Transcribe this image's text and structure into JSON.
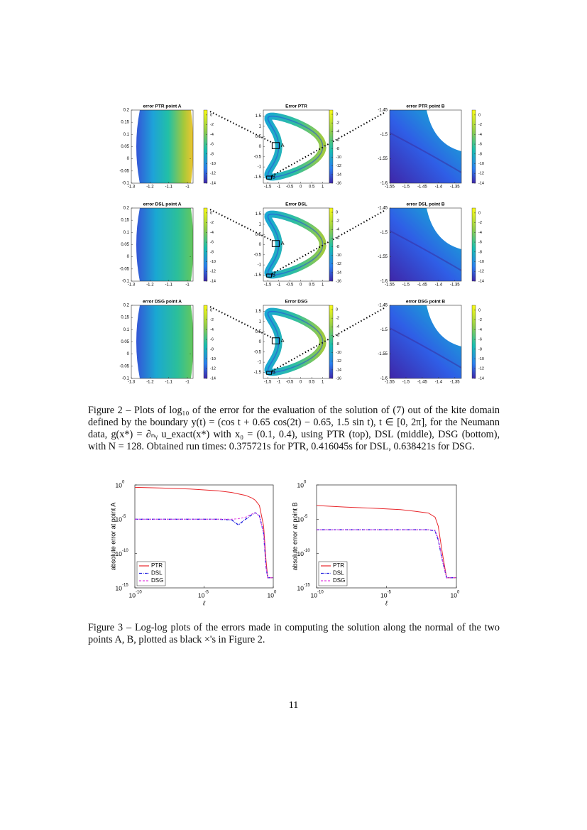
{
  "figure2": {
    "rows": [
      {
        "titles": [
          "error PTR point A",
          "Error PTR",
          "error PTR point B"
        ]
      },
      {
        "titles": [
          "error DSL point A",
          "Error DSL",
          "error DSL point B"
        ]
      },
      {
        "titles": [
          "error DSG point A",
          "Error DSG",
          "error DSG point B"
        ]
      }
    ],
    "columns": [
      {
        "xlim": [
          -1.3,
          -0.97
        ],
        "ylim": [
          -0.1,
          0.2
        ],
        "xticks": [
          -1.3,
          -1.2,
          -1.1,
          -1
        ],
        "yticks": [
          -0.1,
          -0.05,
          0,
          0.05,
          0.1,
          0.15,
          0.2
        ],
        "cblim": [
          -14,
          1
        ],
        "cbticks": [
          0,
          -2,
          -4,
          -6,
          -8,
          -10,
          -12,
          -14
        ]
      },
      {
        "xlim": [
          -1.7,
          1.3
        ],
        "ylim": [
          -1.8,
          1.8
        ],
        "xticks": [
          -1.5,
          -1,
          -0.5,
          0,
          0.5,
          1
        ],
        "yticks": [
          -1.5,
          -1,
          -0.5,
          0,
          0.5,
          1,
          1.5
        ],
        "cblim": [
          -16,
          1
        ],
        "cbticks": [
          0,
          -2,
          -4,
          -6,
          -8,
          -10,
          -12,
          -14,
          -16
        ],
        "markers": [
          "A",
          "B"
        ]
      },
      {
        "xlim": [
          -1.55,
          -1.33
        ],
        "ylim": [
          -1.6,
          -1.45
        ],
        "xticks": [
          -1.55,
          -1.5,
          -1.45,
          -1.4,
          -1.35
        ],
        "yticks": [
          -1.6,
          -1.55,
          -1.5,
          -1.45
        ],
        "cblim": [
          -14,
          1
        ],
        "cbticks": [
          0,
          -2,
          -4,
          -6,
          -8,
          -10,
          -12,
          -14
        ]
      }
    ],
    "caption": "Figure 2 – Plots of log₁₀ of the error for the evaluation of the solution of (7) out of the kite domain defined by the boundary y(t) = (cos t + 0.65 cos(2t) − 0.65, 1.5 sin t), t ∈ [0, 2π], for the Neumann data, g(x*) = ∂ₙᵧ u_exact(x*) with x₀ = (0.1, 0.4), using PTR (top), DSL (middle), DSG (bottom), with N = 128. Obtained run times: 0.375721s for PTR, 0.416045s for DSL, 0.638421s for DSG."
  },
  "figure3": {
    "panels": [
      {
        "type": "line",
        "ylabel": "absolute error at point A",
        "xlabel": "ℓ",
        "log_x": true,
        "log_y": true,
        "legend": "lower left",
        "xlim": [
          1e-10,
          1
        ],
        "ylim": [
          1e-15,
          1
        ],
        "xticks": [
          {
            "value": 1e-10,
            "label": "10",
            "exponent": "-10"
          },
          {
            "value": 1e-05,
            "label": "10",
            "exponent": "-5"
          },
          {
            "value": 1,
            "label": "10",
            "exponent": "0"
          }
        ],
        "yticks": [
          {
            "value": 1,
            "label": "10",
            "exponent": "0"
          },
          {
            "value": 1e-05,
            "label": "10",
            "exponent": "-5"
          },
          {
            "value": 1e-10,
            "label": "10",
            "exponent": "-10"
          },
          {
            "value": 1e-15,
            "label": "10",
            "exponent": "-15"
          }
        ],
        "x": [
          1e-10,
          1e-08,
          1e-06,
          0.0001,
          0.001,
          0.003,
          0.01,
          0.03,
          0.05,
          0.1,
          0.2,
          0.3,
          0.4,
          0.5,
          1
        ],
        "series": [
          {
            "name": "PTR",
            "color": "#e8262b",
            "values": [
              0.45,
              0.35,
              0.25,
              0.14,
              0.08,
              0.05,
              0.03,
              0.012,
              0.006,
              0.001,
              1e-06,
              1e-11,
              3e-14,
              3e-14,
              3e-14
            ]
          },
          {
            "name": "DSL",
            "color": "#2323e0",
            "values": [
              1e-05,
              1e-05,
              1e-05,
              1e-05,
              8e-06,
              1.5e-06,
              1e-05,
              5e-05,
              9e-05,
              3e-05,
              1e-07,
              1e-12,
              3e-14,
              3e-14,
              3e-14
            ]
          },
          {
            "name": "DSG",
            "color": "#e040e0",
            "values": [
              1e-05,
              1e-05,
              1e-05,
              1e-05,
              1e-05,
              1.2e-05,
              2e-05,
              6e-05,
              9e-05,
              3e-05,
              1e-07,
              1e-12,
              3e-14,
              3e-14,
              3e-14
            ]
          }
        ]
      },
      {
        "type": "line",
        "ylabel": "absolute error at point B",
        "xlabel": "ℓ",
        "log_x": true,
        "log_y": true,
        "legend": "lower left",
        "xlim": [
          1e-10,
          1
        ],
        "ylim": [
          1e-15,
          1
        ],
        "xticks": [
          {
            "value": 1e-10,
            "label": "10",
            "exponent": "-10"
          },
          {
            "value": 1e-05,
            "label": "10",
            "exponent": "-5"
          },
          {
            "value": 1,
            "label": "10",
            "exponent": "0"
          }
        ],
        "yticks": [
          {
            "value": 1,
            "label": "10",
            "exponent": "0"
          },
          {
            "value": 1e-05,
            "label": "10",
            "exponent": "-5"
          },
          {
            "value": 1e-10,
            "label": "10",
            "exponent": "-10"
          },
          {
            "value": 1e-15,
            "label": "10",
            "exponent": "-15"
          }
        ],
        "x": [
          1e-10,
          1e-08,
          1e-06,
          0.0001,
          0.001,
          0.01,
          0.03,
          0.05,
          0.1,
          0.2,
          0.3,
          1
        ],
        "series": [
          {
            "name": "PTR",
            "color": "#e8262b",
            "values": [
              0.001,
              0.0006,
              0.0004,
              0.00025,
              0.00015,
              8e-05,
              2e-05,
              1e-06,
              1e-10,
              3e-14,
              3e-14,
              3e-14
            ]
          },
          {
            "name": "DSL",
            "color": "#2323e0",
            "values": [
              3e-07,
              3e-07,
              3e-07,
              3e-07,
              3e-07,
              3e-07,
              2e-07,
              1e-08,
              1e-11,
              3e-14,
              3e-14,
              3e-14
            ]
          },
          {
            "name": "DSG",
            "color": "#e040e0",
            "values": [
              3e-07,
              3e-07,
              3e-07,
              3e-07,
              3e-07,
              3e-07,
              2.5e-07,
              1.5e-08,
              1e-11,
              3e-14,
              3e-14,
              3e-14
            ]
          }
        ]
      }
    ],
    "caption": "Figure 3 – Log-log plots of the errors made in computing the solution along the normal of the two points A, B, plotted as black ×'s in Figure 2."
  },
  "page_number": "11"
}
